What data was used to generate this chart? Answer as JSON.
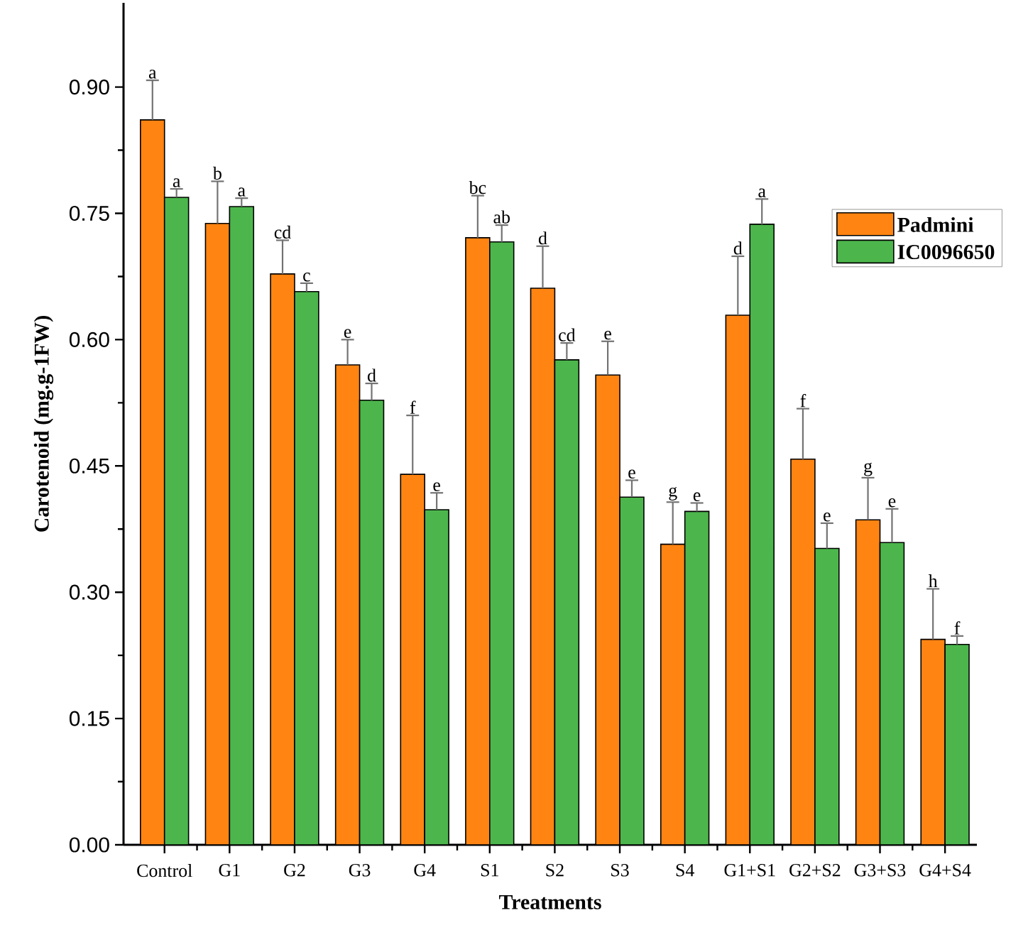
{
  "chart_data": {
    "type": "bar",
    "xlabel": "Treatments",
    "ylabel": "Carotenoid (mg.g-1FW)",
    "categories": [
      "Control",
      "G1",
      "G2",
      "G3",
      "G4",
      "S1",
      "S2",
      "S3",
      "S4",
      "G1+S1",
      "G2+S2",
      "G3+S3",
      "G4+S4"
    ],
    "series": [
      {
        "name": "Padmini",
        "color": "#ff8412",
        "values": [
          0.861,
          0.738,
          0.678,
          0.57,
          0.44,
          0.721,
          0.661,
          0.558,
          0.357,
          0.629,
          0.458,
          0.386,
          0.244
        ],
        "errors": [
          [
            0.861,
            0.908
          ],
          [
            0.738,
            0.788
          ],
          [
            0.678,
            0.718
          ],
          [
            0.57,
            0.6
          ],
          [
            0.44,
            0.51
          ],
          [
            0.721,
            0.771
          ],
          [
            0.661,
            0.711
          ],
          [
            0.558,
            0.598
          ],
          [
            0.357,
            0.407
          ],
          [
            0.629,
            0.699
          ],
          [
            0.458,
            0.518
          ],
          [
            0.386,
            0.436
          ],
          [
            0.244,
            0.304
          ]
        ]
      },
      {
        "name": "IC0096650",
        "color": "#4cb64c",
        "values": [
          0.769,
          0.758,
          0.657,
          0.528,
          0.398,
          0.716,
          0.576,
          0.413,
          0.396,
          0.737,
          0.352,
          0.359,
          0.238
        ],
        "errors": [
          [
            0.769,
            0.779
          ],
          [
            0.758,
            0.768
          ],
          [
            0.657,
            0.667
          ],
          [
            0.528,
            0.548
          ],
          [
            0.398,
            0.418
          ],
          [
            0.716,
            0.736
          ],
          [
            0.576,
            0.596
          ],
          [
            0.413,
            0.433
          ],
          [
            0.396,
            0.406
          ],
          [
            0.737,
            0.767
          ],
          [
            0.352,
            0.382
          ],
          [
            0.359,
            0.399
          ],
          [
            0.238,
            0.248
          ]
        ]
      }
    ],
    "ylim": [
      0,
      1.0
    ],
    "yticks": [
      {
        "value": 0,
        "label": "0.00"
      },
      {
        "value": 0.15,
        "label": "0.15"
      },
      {
        "value": 0.3,
        "label": "0.30"
      },
      {
        "value": 0.45,
        "label": "0.45"
      },
      {
        "value": 0.6,
        "label": "0.60"
      },
      {
        "value": 0.75,
        "label": "0.75"
      },
      {
        "value": 0.9,
        "label": "0.90"
      }
    ],
    "grid": false,
    "legend": "right",
    "annotations": [
      "a",
      "a",
      "b",
      "a",
      "cd",
      "c",
      "e",
      "d",
      "f",
      "e",
      "bc",
      "ab",
      "d",
      "cd",
      "e",
      "e",
      "g",
      "e",
      "d",
      "a",
      "f",
      "e",
      "g",
      "e",
      "h",
      "f"
    ]
  }
}
